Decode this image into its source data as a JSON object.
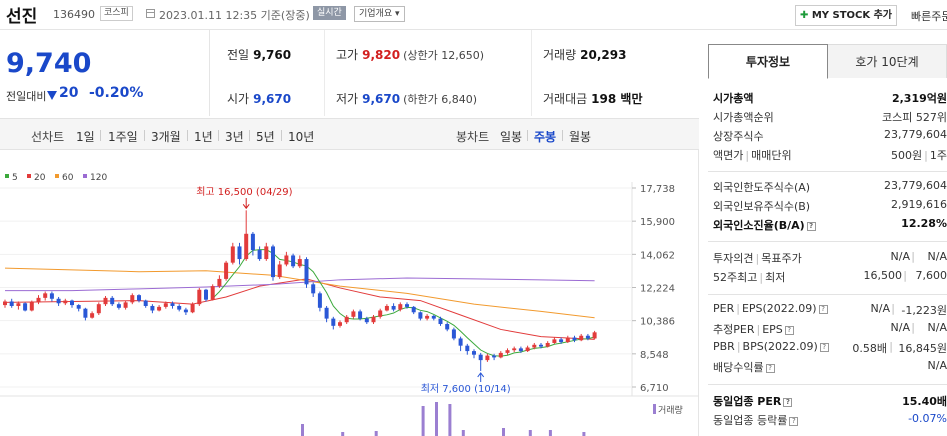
{
  "header": {
    "name": "선진",
    "code": "136490",
    "market": "코스피",
    "datetime": "2023.01.11 12:35 기준(장중)",
    "realtime": "실시간",
    "company_overview": "기업개요",
    "mystock_button": "MY STOCK 추가",
    "quick_order": "빠른주문"
  },
  "price": {
    "current": "9,740",
    "change_label": "전일대비",
    "change": "20",
    "change_rate": "-0.20%"
  },
  "stats": {
    "prev_close_label": "전일",
    "prev_close": "9,760",
    "high_label": "고가",
    "high": "9,820",
    "upper_limit": "(상한가 12,650)",
    "volume_label": "거래량",
    "volume": "20,293",
    "open_label": "시가",
    "open": "9,670",
    "low_label": "저가",
    "low": "9,670",
    "lower_limit": "(하한가 6,840)",
    "amount_label": "거래대금",
    "amount": "198 백만"
  },
  "tabs": {
    "line_chart": "선차트",
    "periods": [
      "1일",
      "1주일",
      "3개월",
      "1년",
      "3년",
      "5년",
      "10년"
    ],
    "candle_chart": "봉차트",
    "candle_periods": [
      "일봉",
      "주봉",
      "월봉"
    ],
    "active_candle": "주봉"
  },
  "chart_data": {
    "type": "candlestick",
    "legend": [
      "5",
      "20",
      "60",
      "120"
    ],
    "legend_colors": [
      "#3ca93c",
      "#e23b3b",
      "#f29a2e",
      "#9b6bd3"
    ],
    "y_ticks": [
      "17,738",
      "15,900",
      "14,062",
      "12,224",
      "10,386",
      "8,548",
      "6,710"
    ],
    "ylim": [
      6710,
      17738
    ],
    "max_annotation": "최고 16,500 (04/29)",
    "min_annotation": "최저 7,600 (10/14)",
    "volume_label": "거래량",
    "candles": [
      [
        11250,
        11450,
        11100,
        11550
      ],
      [
        11450,
        11200,
        11100,
        11600
      ],
      [
        11200,
        11350,
        11000,
        11450
      ],
      [
        11350,
        10950,
        10900,
        11400
      ],
      [
        10950,
        11400,
        10900,
        11500
      ],
      [
        11400,
        11650,
        11300,
        11800
      ],
      [
        11650,
        11900,
        11500,
        12000
      ],
      [
        11900,
        11600,
        11450,
        12000
      ],
      [
        11600,
        11350,
        11200,
        11700
      ],
      [
        11350,
        11500,
        11250,
        11600
      ],
      [
        11500,
        11250,
        11100,
        11550
      ],
      [
        11250,
        11050,
        10900,
        11300
      ],
      [
        11050,
        10550,
        10400,
        11100
      ],
      [
        10550,
        10800,
        10500,
        10900
      ],
      [
        10800,
        11300,
        10700,
        11400
      ],
      [
        11300,
        11650,
        11200,
        11750
      ],
      [
        11650,
        11300,
        11200,
        11750
      ],
      [
        11300,
        11100,
        11000,
        11400
      ],
      [
        11100,
        11400,
        11000,
        11500
      ],
      [
        11400,
        11800,
        11300,
        11900
      ],
      [
        11800,
        11500,
        11400,
        11850
      ],
      [
        11500,
        11200,
        11100,
        11550
      ],
      [
        11200,
        10950,
        10800,
        11300
      ],
      [
        10950,
        11150,
        10900,
        11250
      ],
      [
        11150,
        11350,
        11050,
        11450
      ],
      [
        11350,
        11200,
        11050,
        11450
      ],
      [
        11200,
        11000,
        10900,
        11300
      ],
      [
        11000,
        10850,
        10700,
        11100
      ],
      [
        10850,
        11300,
        10800,
        11400
      ],
      [
        11300,
        12100,
        11200,
        12200
      ],
      [
        12100,
        11550,
        11450,
        12150
      ],
      [
        11550,
        12300,
        11500,
        12400
      ],
      [
        12300,
        12700,
        12200,
        12900
      ],
      [
        12700,
        13600,
        12600,
        13700
      ],
      [
        13600,
        14500,
        13500,
        14700
      ],
      [
        14500,
        13800,
        13500,
        14700
      ],
      [
        13800,
        15200,
        13700,
        16500
      ],
      [
        15200,
        14300,
        14000,
        15300
      ],
      [
        14300,
        13800,
        13700,
        14500
      ],
      [
        13800,
        14500,
        13700,
        14700
      ],
      [
        14500,
        12800,
        12600,
        14600
      ],
      [
        12800,
        13500,
        12700,
        13700
      ],
      [
        13500,
        14000,
        13400,
        14200
      ],
      [
        14000,
        13400,
        13300,
        14100
      ],
      [
        13400,
        13800,
        13300,
        14000
      ],
      [
        13800,
        12400,
        12200,
        13900
      ],
      [
        12400,
        11900,
        11700,
        12500
      ],
      [
        11900,
        11100,
        10900,
        12000
      ],
      [
        11100,
        10500,
        10300,
        11200
      ],
      [
        10500,
        10100,
        9900,
        10600
      ],
      [
        10100,
        10300,
        10000,
        10400
      ],
      [
        10300,
        10600,
        10200,
        10700
      ],
      [
        10600,
        10900,
        10500,
        11000
      ],
      [
        10900,
        10500,
        10400,
        11000
      ],
      [
        10500,
        10300,
        10200,
        10600
      ],
      [
        10300,
        10600,
        10200,
        10700
      ],
      [
        10600,
        10950,
        10500,
        11050
      ],
      [
        10950,
        11200,
        10900,
        11300
      ],
      [
        11200,
        11000,
        10900,
        11350
      ],
      [
        11000,
        11300,
        10900,
        11400
      ],
      [
        11300,
        11150,
        11050,
        11400
      ],
      [
        11150,
        10850,
        10750,
        11200
      ],
      [
        10850,
        10500,
        10400,
        10900
      ],
      [
        10500,
        10650,
        10400,
        10750
      ],
      [
        10650,
        10500,
        10400,
        10700
      ],
      [
        10500,
        10200,
        10100,
        10600
      ],
      [
        10200,
        9900,
        9800,
        10300
      ],
      [
        9900,
        9400,
        9300,
        10000
      ],
      [
        9400,
        9000,
        8700,
        9500
      ],
      [
        9000,
        8700,
        8500,
        9100
      ],
      [
        8700,
        8500,
        8300,
        8800
      ],
      [
        8500,
        8200,
        7600,
        8600
      ],
      [
        8200,
        8450,
        8100,
        8550
      ],
      [
        8450,
        8350,
        8200,
        8550
      ],
      [
        8350,
        8600,
        8300,
        8700
      ],
      [
        8600,
        8750,
        8500,
        8850
      ],
      [
        8750,
        8850,
        8650,
        8950
      ],
      [
        8850,
        8700,
        8600,
        8950
      ],
      [
        8700,
        8900,
        8650,
        9000
      ],
      [
        8900,
        9050,
        8800,
        9150
      ],
      [
        9050,
        8950,
        8850,
        9150
      ],
      [
        8950,
        9150,
        8900,
        9250
      ],
      [
        9150,
        9350,
        9100,
        9450
      ],
      [
        9350,
        9200,
        9100,
        9450
      ],
      [
        9200,
        9450,
        9150,
        9550
      ],
      [
        9450,
        9300,
        9200,
        9550
      ],
      [
        9300,
        9550,
        9250,
        9650
      ],
      [
        9550,
        9400,
        9300,
        9650
      ],
      [
        9400,
        9740,
        9350,
        9820
      ]
    ],
    "volumes": [
      0,
      0,
      0,
      0,
      0,
      0,
      0,
      0,
      0,
      0,
      0,
      0,
      0,
      0,
      0,
      0,
      0,
      0,
      0,
      0,
      0,
      0,
      0,
      0,
      0,
      0,
      0,
      0,
      0,
      0,
      0,
      0,
      0,
      0,
      0,
      0,
      0,
      0,
      0,
      0,
      0,
      0,
      0,
      0,
      0,
      0,
      0,
      0,
      0,
      0,
      0,
      0,
      0,
      0,
      0,
      0,
      0,
      0,
      0,
      0,
      0,
      0,
      0,
      0,
      0,
      0,
      0,
      0,
      0,
      0,
      0,
      0,
      0,
      0,
      0,
      0,
      0,
      0,
      0,
      0,
      0,
      0,
      0,
      0,
      0,
      0,
      0,
      0,
      0
    ],
    "volume_bars": [
      [
        40,
        12
      ],
      [
        46,
        4
      ],
      [
        51,
        5
      ],
      [
        58,
        30
      ],
      [
        60,
        34
      ],
      [
        62,
        32
      ],
      [
        64,
        6
      ],
      [
        70,
        8
      ],
      [
        74,
        6
      ],
      [
        77,
        6
      ],
      [
        82,
        4
      ]
    ],
    "ma": {
      "ma5": [
        [
          0,
          null
        ]
      ],
      "ma20": [
        [
          0,
          11400
        ],
        [
          10,
          11450
        ],
        [
          20,
          11500
        ],
        [
          28,
          11300
        ],
        [
          33,
          11700
        ],
        [
          38,
          12300
        ],
        [
          45,
          12700
        ],
        [
          50,
          12200
        ],
        [
          56,
          11700
        ],
        [
          62,
          11500
        ],
        [
          68,
          10700
        ],
        [
          74,
          9900
        ],
        [
          80,
          9500
        ],
        [
          88,
          9350
        ]
      ],
      "ma60": [
        [
          0,
          13300
        ],
        [
          10,
          13200
        ],
        [
          20,
          13100
        ],
        [
          30,
          13150
        ],
        [
          40,
          12900
        ],
        [
          50,
          12300
        ],
        [
          60,
          11900
        ],
        [
          70,
          11300
        ],
        [
          80,
          10900
        ],
        [
          88,
          10550
        ]
      ],
      "ma120": [
        [
          0,
          12050
        ],
        [
          10,
          12050
        ],
        [
          20,
          12150
        ],
        [
          30,
          12250
        ],
        [
          40,
          12400
        ],
        [
          50,
          12650
        ],
        [
          60,
          12750
        ],
        [
          70,
          12700
        ],
        [
          80,
          12650
        ],
        [
          88,
          12600
        ]
      ]
    }
  },
  "side": {
    "tab_active": "투자정보",
    "tab_other": "호가 10단계",
    "rows": {
      "market_cap_label": "시가총액",
      "market_cap": "2,319억원",
      "market_rank_label": "시가총액순위",
      "market_rank": "코스피 527위",
      "shares_label": "상장주식수",
      "shares": "23,779,604",
      "par_label": "액면가",
      "trade_unit_label": "매매단위",
      "par": "500원",
      "trade_unit": "1주",
      "foreign_limit_label": "외국인한도주식수(A)",
      "foreign_limit": "23,779,604",
      "foreign_hold_label": "외국인보유주식수(B)",
      "foreign_hold": "2,919,616",
      "foreign_ratio_label": "외국인소진율(B/A)",
      "foreign_ratio": "12.28%",
      "opinion_label": "투자의견",
      "target_label": "목표주가",
      "opinion": "N/A",
      "target": "N/A",
      "w52_label": "52주최고",
      "w52_low_label": "최저",
      "w52_high": "16,500",
      "w52_low": "7,600",
      "per_label": "PER",
      "eps_label": "EPS(2022.09)",
      "per": "N/A",
      "eps": "-1,223원",
      "est_per_label": "추정PER",
      "est_eps_label": "EPS",
      "est_per": "N/A",
      "est_eps": "N/A",
      "pbr_label": "PBR",
      "bps_label": "BPS(2022.09)",
      "pbr": "0.58배",
      "bps": "16,845원",
      "div_label": "배당수익률",
      "div": "N/A",
      "sector_per_label": "동일업종 PER",
      "sector_per": "15.40배",
      "sector_chg_label": "동일업종 등락률",
      "sector_chg": "-0.07%"
    }
  }
}
